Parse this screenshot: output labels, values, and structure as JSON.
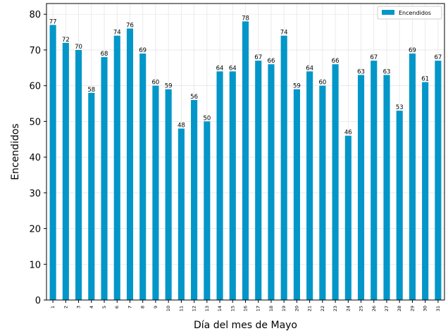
{
  "chart_data": {
    "type": "bar",
    "title": "",
    "xlabel": "Día del mes de Mayo",
    "ylabel": "Encendidos",
    "categories": [
      "1",
      "2",
      "3",
      "4",
      "5",
      "6",
      "7",
      "8",
      "9",
      "10",
      "11",
      "12",
      "13",
      "14",
      "15",
      "16",
      "17",
      "18",
      "19",
      "20",
      "21",
      "22",
      "23",
      "24",
      "25",
      "26",
      "27",
      "28",
      "29",
      "30",
      "31"
    ],
    "series": [
      {
        "name": "Encendidos",
        "color": "#0396c8",
        "values": [
          77,
          72,
          70,
          58,
          68,
          74,
          76,
          69,
          60,
          59,
          48,
          56,
          50,
          64,
          64,
          78,
          67,
          66,
          74,
          59,
          64,
          60,
          66,
          46,
          63,
          67,
          63,
          53,
          69,
          61,
          67
        ]
      }
    ],
    "ylim": [
      0,
      83
    ],
    "yticks": [
      0,
      10,
      20,
      30,
      40,
      50,
      60,
      70,
      80
    ],
    "grid": true,
    "legend_position": "top-right",
    "data_labels": true
  }
}
